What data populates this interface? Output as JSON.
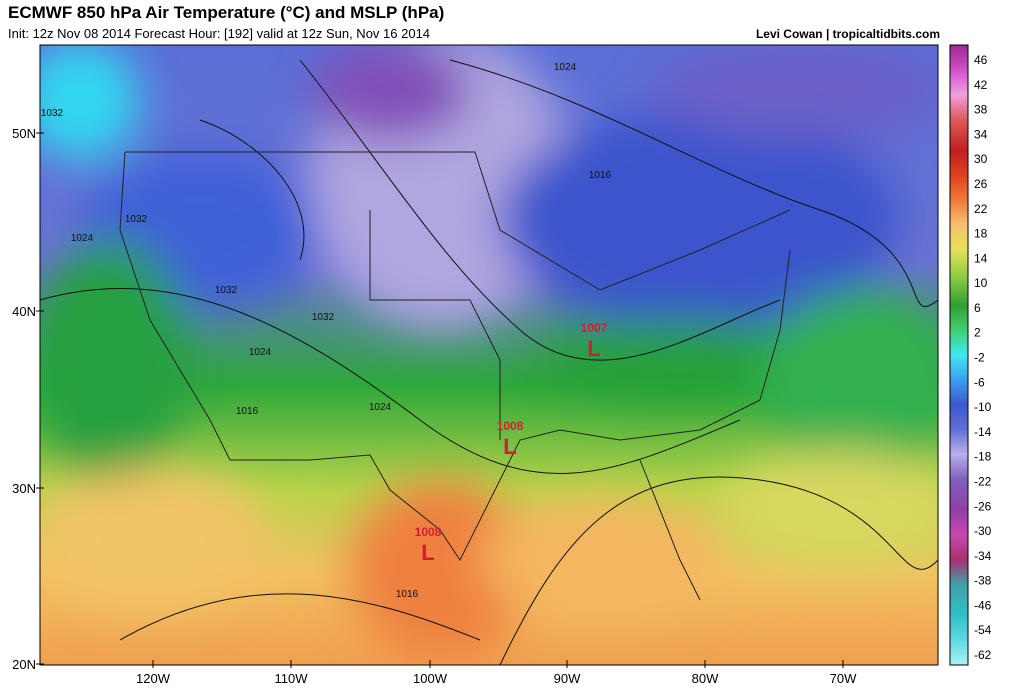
{
  "header": {
    "title": "ECMWF 850 hPa Air Temperature (°C) and MSLP (hPa)",
    "subtitle": "Init: 12z Nov 08 2014 Forecast Hour: [192] valid at 12z Sun, Nov 16 2014",
    "credit": "Levi Cowan | tropicaltidbits.com"
  },
  "map": {
    "lat_labels": [
      "50N",
      "40N",
      "30N",
      "20N"
    ],
    "lon_labels": [
      "120W",
      "110W",
      "100W",
      "90W",
      "80W",
      "70W"
    ],
    "isobar_labels": [
      "1024",
      "1032",
      "1016",
      "1032",
      "1024",
      "1032",
      "1032",
      "1024",
      "1016",
      "1024",
      "1016"
    ],
    "lows": [
      {
        "pressure": "1007",
        "symbol": "L"
      },
      {
        "pressure": "1008",
        "symbol": "L"
      },
      {
        "pressure": "1008",
        "symbol": "L"
      }
    ]
  },
  "colorbar": {
    "labels": [
      "46",
      "42",
      "38",
      "34",
      "30",
      "26",
      "22",
      "18",
      "14",
      "10",
      "6",
      "2",
      "-2",
      "-6",
      "-10",
      "-14",
      "-18",
      "-22",
      "-26",
      "-30",
      "-34",
      "-38",
      "-46",
      "-54",
      "-62"
    ]
  }
}
